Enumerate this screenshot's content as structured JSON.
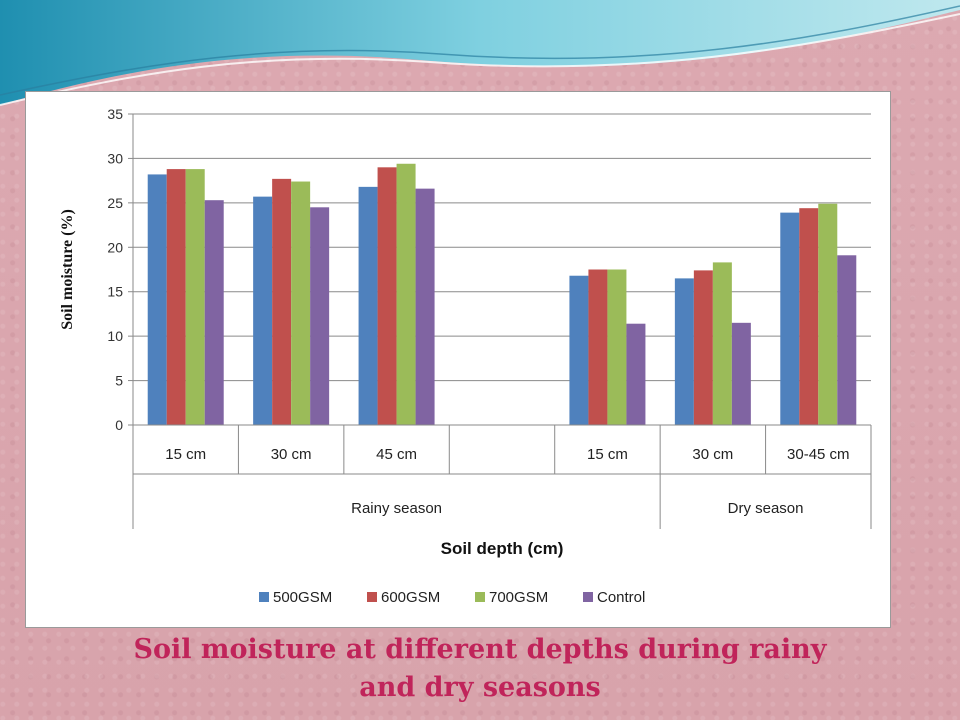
{
  "chart_data": {
    "type": "bar",
    "title": "",
    "ylabel": "Soil moisture (%)",
    "xlabel": "Soil depth (cm)",
    "ylim": [
      0,
      35
    ],
    "yticks": [
      0,
      5,
      10,
      15,
      20,
      25,
      30,
      35
    ],
    "categories": [
      "15 cm",
      "30 cm",
      "45 cm",
      "",
      "15 cm",
      "30 cm",
      "30-45 cm"
    ],
    "groups": [
      {
        "label": "Rainy season",
        "span": [
          0,
          4
        ]
      },
      {
        "label": "Dry season",
        "span": [
          5,
          6
        ]
      }
    ],
    "series": [
      {
        "name": "500GSM",
        "color": "#4f81bd",
        "values": [
          28.2,
          25.7,
          26.8,
          null,
          16.8,
          16.5,
          23.9
        ]
      },
      {
        "name": "600GSM",
        "color": "#c0504d",
        "values": [
          28.8,
          27.7,
          29.0,
          null,
          17.5,
          17.4,
          24.4
        ]
      },
      {
        "name": "700GSM",
        "color": "#9bbb59",
        "values": [
          28.8,
          27.4,
          29.4,
          null,
          17.5,
          18.3,
          24.9
        ]
      },
      {
        "name": "Control",
        "color": "#8064a2",
        "values": [
          25.3,
          24.5,
          26.6,
          null,
          11.4,
          11.5,
          19.1
        ]
      }
    ],
    "legend_position": "bottom",
    "grid": true
  },
  "caption": {
    "line1": "Soil moisture at different depths during rainy",
    "line2": "and dry seasons"
  }
}
